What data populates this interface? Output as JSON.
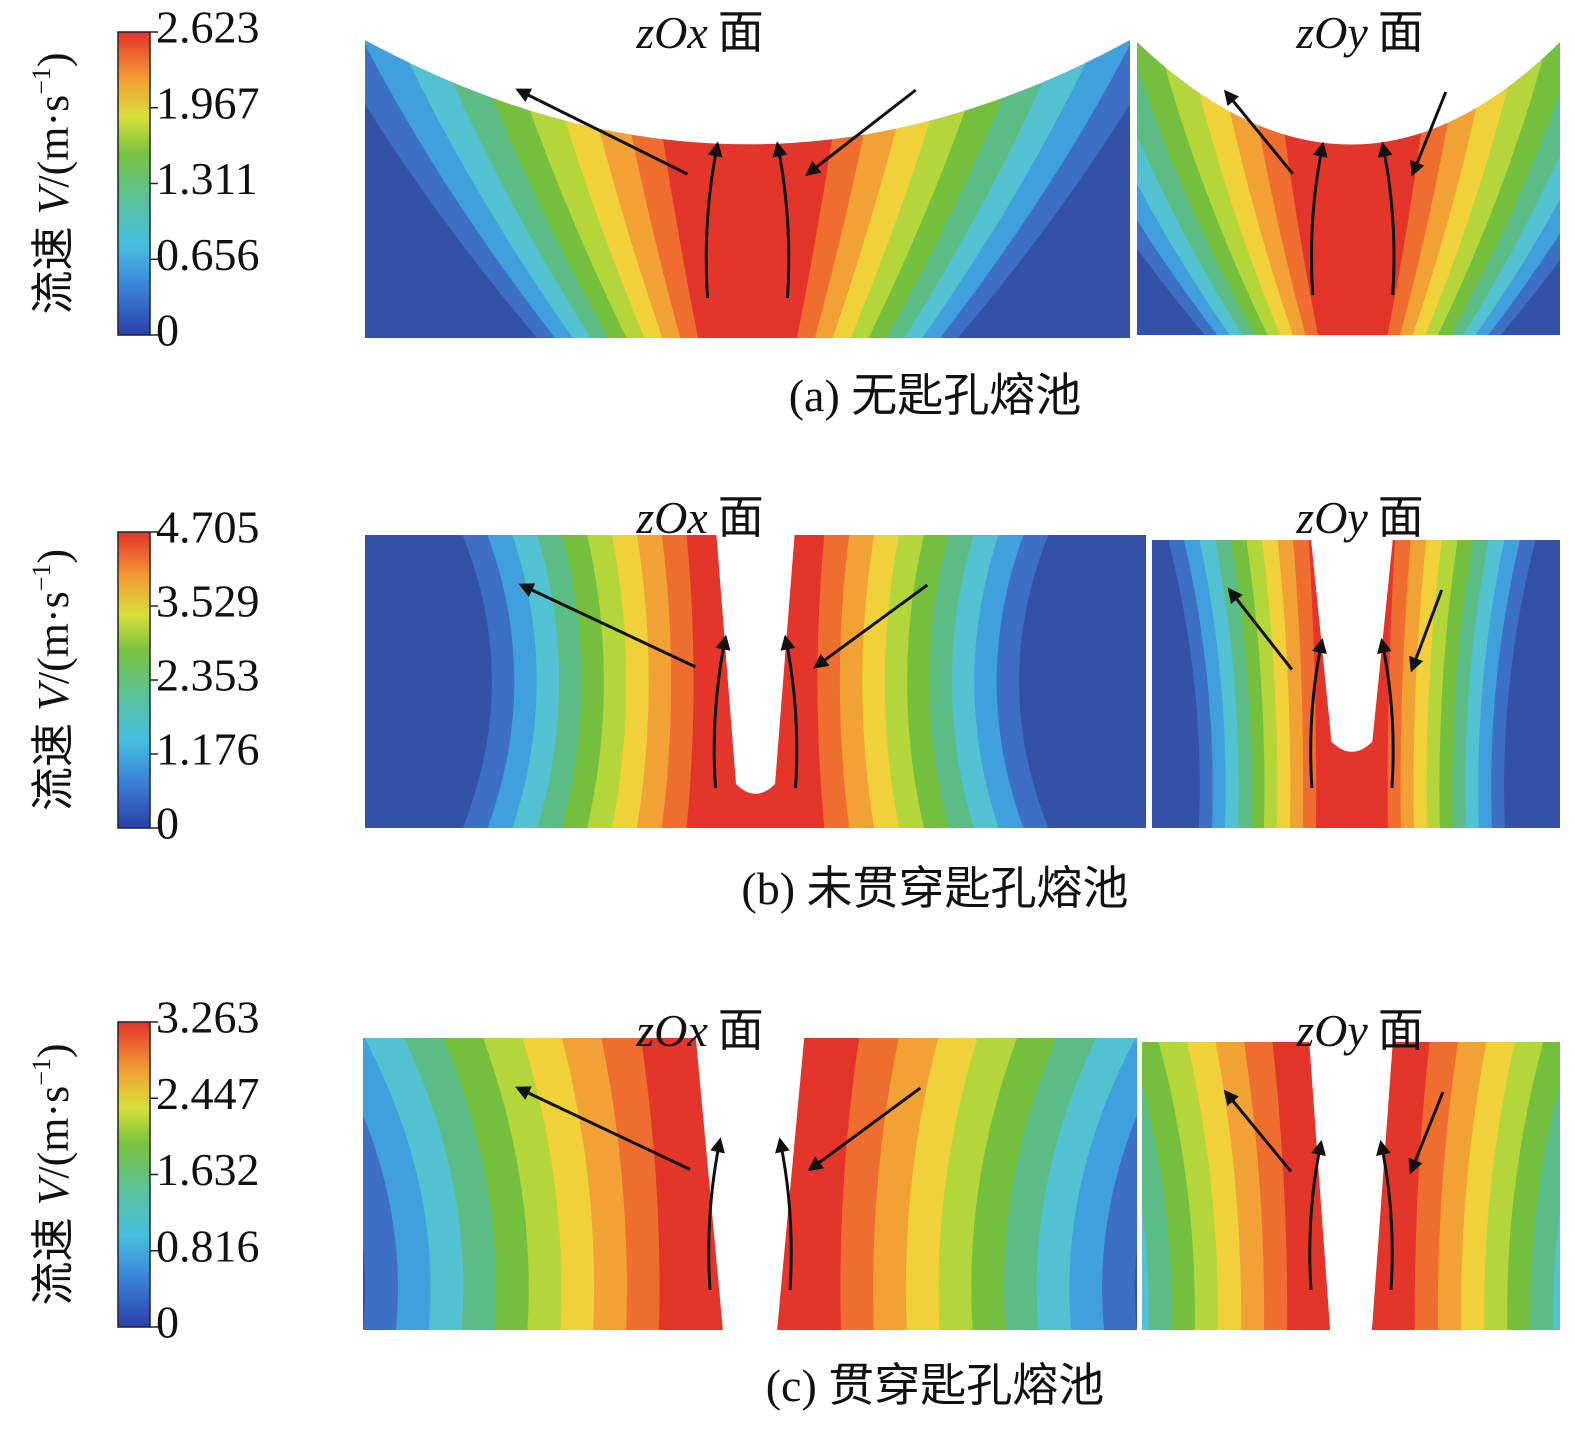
{
  "panels": [
    {
      "colorbar": {
        "label": {
          "name": "流速",
          "symbol": "V",
          "unit": "/(m·s",
          "exponent": "−1",
          "close": ")"
        },
        "ticks": [
          "2.623",
          "1.967",
          "1.311",
          "0.656",
          "0"
        ]
      },
      "views": [
        {
          "plane": "zOx",
          "suffix": "面"
        },
        {
          "plane": "zOy",
          "suffix": "面"
        }
      ],
      "caption": "(a) 无匙孔熔池"
    },
    {
      "colorbar": {
        "label": {
          "name": "流速",
          "symbol": "V",
          "unit": "/(m·s",
          "exponent": "−1",
          "close": ")"
        },
        "ticks": [
          "4.705",
          "3.529",
          "2.353",
          "1.176",
          "0"
        ]
      },
      "views": [
        {
          "plane": "zOx",
          "suffix": "面"
        },
        {
          "plane": "zOy",
          "suffix": "面"
        }
      ],
      "caption": "(b) 未贯穿匙孔熔池"
    },
    {
      "colorbar": {
        "label": {
          "name": "流速",
          "symbol": "V",
          "unit": "/(m·s",
          "exponent": "−1",
          "close": ")"
        },
        "ticks": [
          "3.263",
          "2.447",
          "1.632",
          "0.816",
          "0"
        ]
      },
      "views": [
        {
          "plane": "zOx",
          "suffix": "面"
        },
        {
          "plane": "zOy",
          "suffix": "面"
        }
      ],
      "caption": "(c) 贯穿匙孔熔池"
    }
  ]
}
